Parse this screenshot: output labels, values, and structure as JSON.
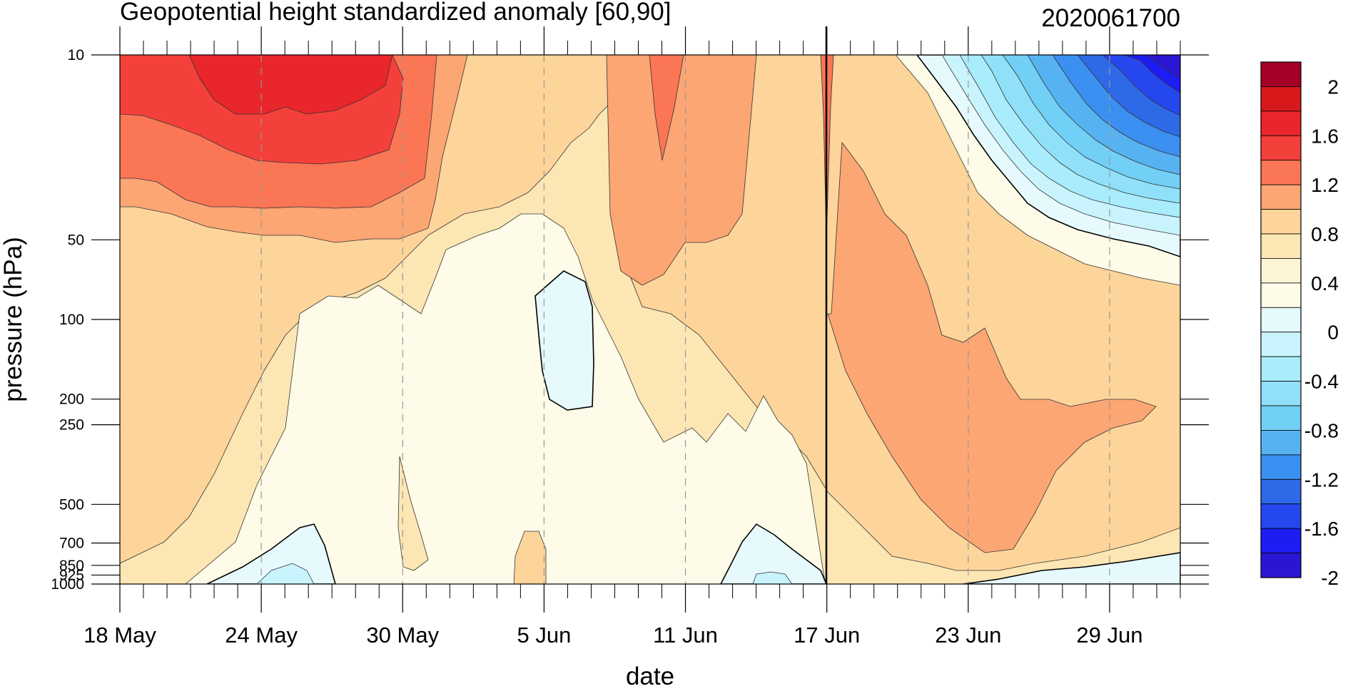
{
  "chart_data": {
    "type": "filled-contour",
    "title": "Geopotential height standardized anomaly [60,90]",
    "subtitle": "2020061700",
    "xlabel": "date",
    "ylabel": "pressure (hPa)",
    "x_ticks": [
      "18 May",
      "24 May",
      "30 May",
      "5 Jun",
      "11 Jun",
      "17 Jun",
      "23 Jun",
      "29 Jun"
    ],
    "x_range_days_from_first_tick": [
      0,
      45
    ],
    "y_ticks": [
      "10",
      "50",
      "100",
      "200",
      "250",
      "500",
      "700",
      "850",
      "925",
      "1000"
    ],
    "y_scale": "log",
    "y_range": [
      1000,
      10
    ],
    "vertical_marker": "17 Jun",
    "colorbar": {
      "labels": [
        "2",
        "1.6",
        "1.2",
        "0.8",
        "0.4",
        "0",
        "-0.4",
        "-0.8",
        "-1.2",
        "-1.6",
        "-2"
      ],
      "colors": [
        "#a50026",
        "#d7191c",
        "#e9262c",
        "#f4403a",
        "#fb7655",
        "#fca674",
        "#fdd49a",
        "#fce6b4",
        "#fdf6d6",
        "#fefbe8",
        "#e6fafe",
        "#c9f4fd",
        "#a9ecfb",
        "#8fe0f8",
        "#72cff5",
        "#57b2f1",
        "#3b8ff0",
        "#2e6ae8",
        "#2547ee",
        "#1c1cf3",
        "#2a16d2"
      ]
    },
    "regions": [
      {
        "level": 0.4,
        "color": "#fdd49a",
        "desc": "broad positive anomaly background"
      },
      {
        "level": 0.8,
        "color": "#fca674",
        "desc": "stratospheric positive core late May"
      },
      {
        "level": 1.6,
        "color": "#f4403a",
        "desc": "strong positive core 20-30 May near 10-30 hPa"
      },
      {
        "level": 0.0,
        "color": "#fefbe8",
        "desc": "near-zero tropospheric anomaly early June"
      },
      {
        "level": -0.4,
        "color": "#c9f4fd",
        "desc": "weak negative near 100-200 hPa around 5 Jun"
      },
      {
        "level": -2.0,
        "color": "#2a16d2",
        "desc": "strong negative stratospheric anomaly late June"
      }
    ]
  }
}
